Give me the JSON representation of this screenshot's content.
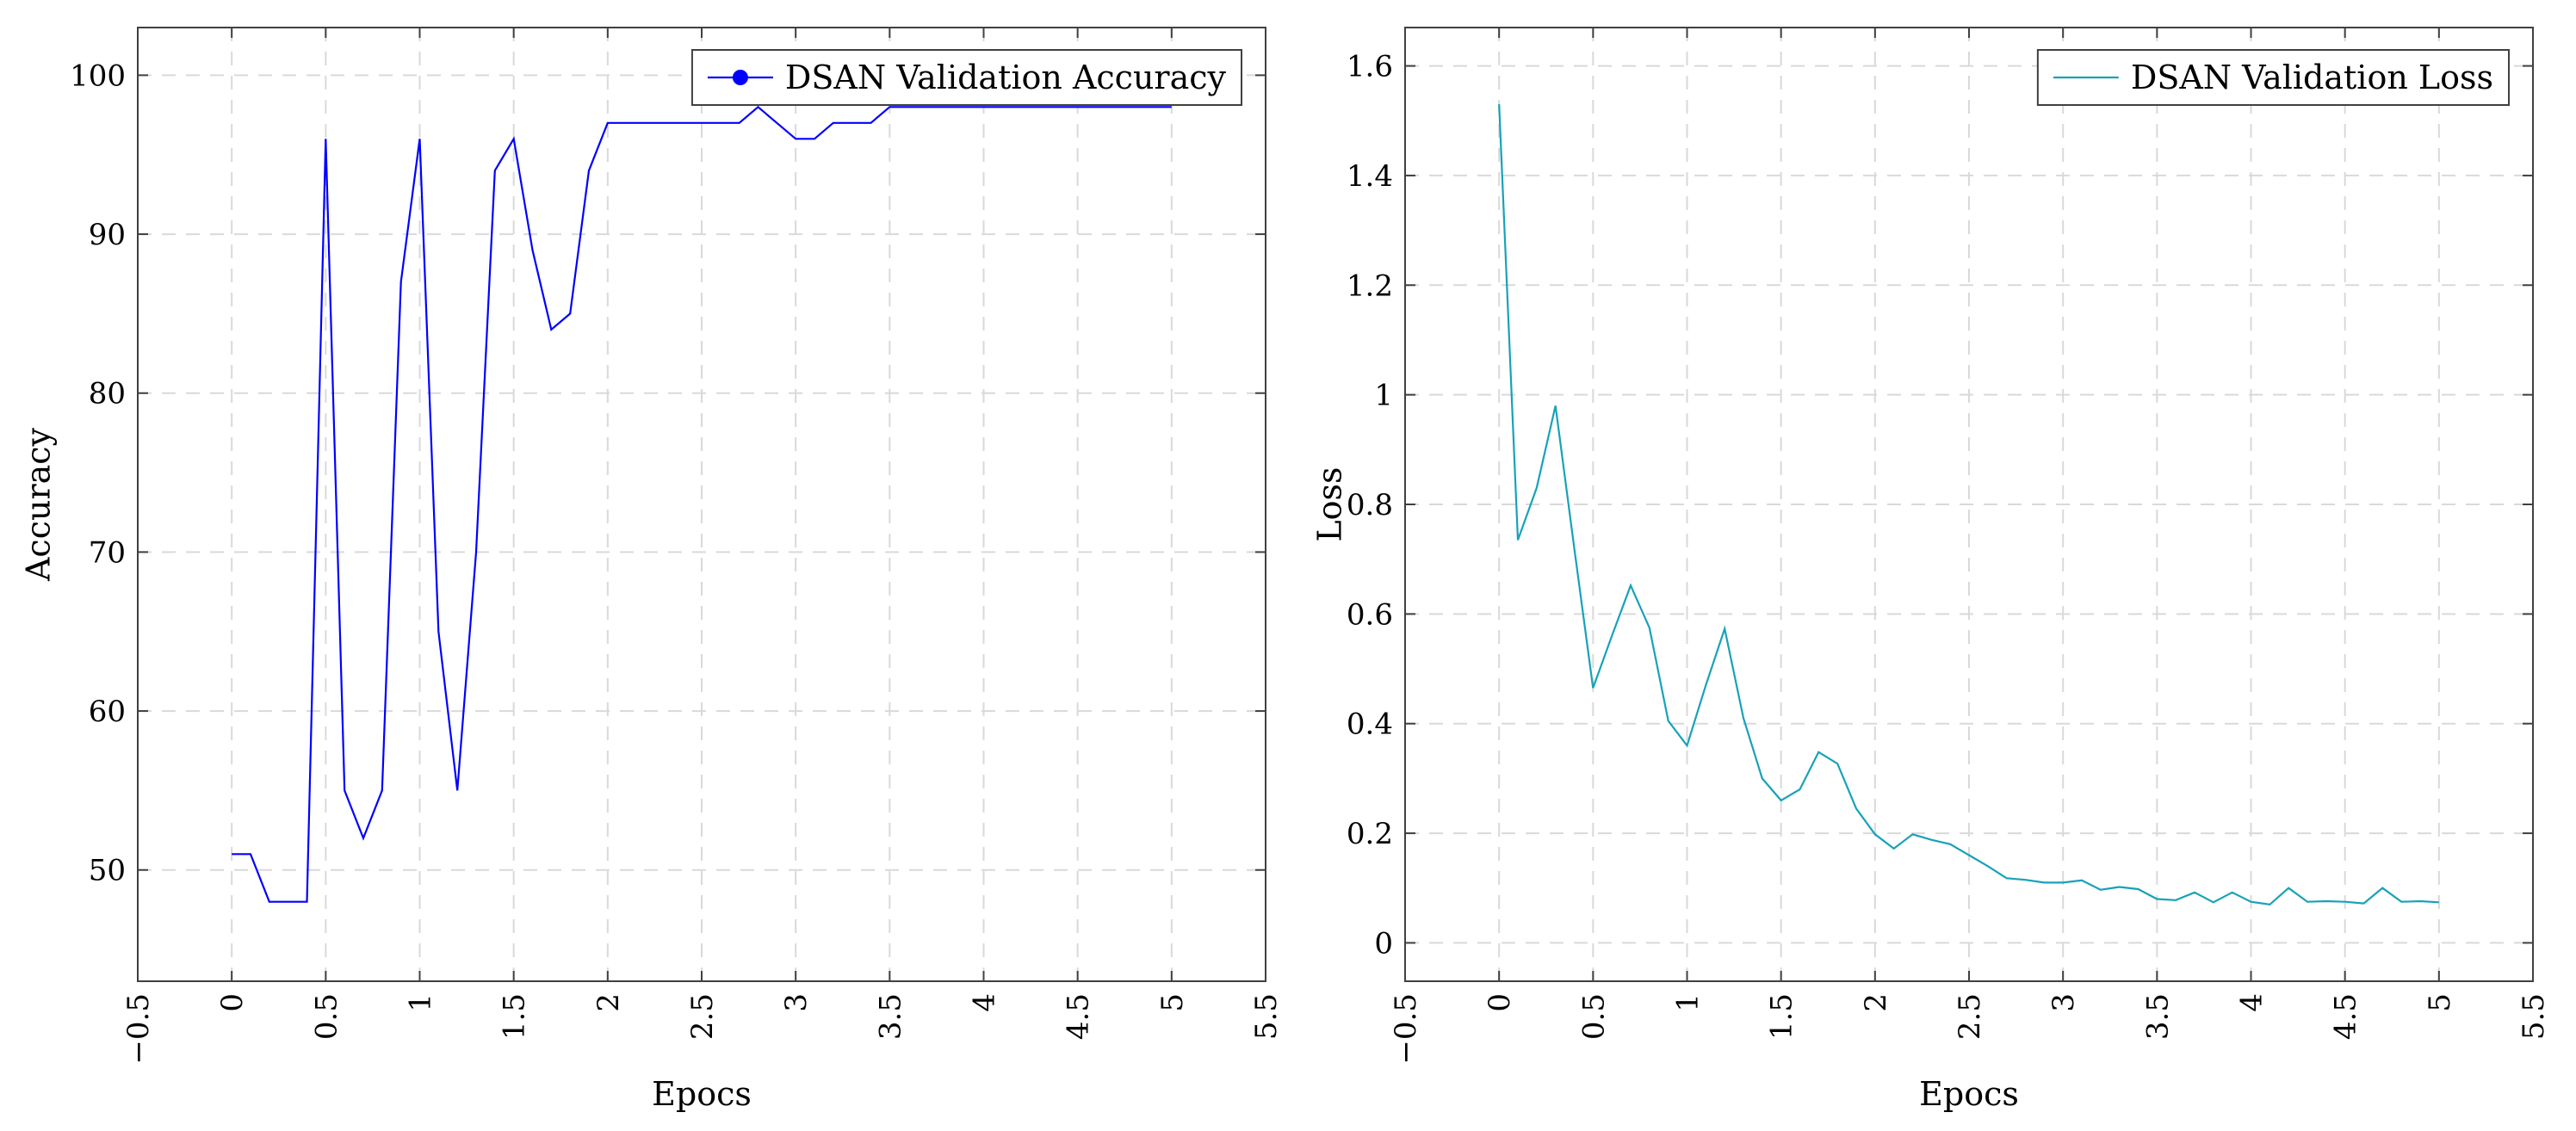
{
  "chart_data": [
    {
      "type": "line",
      "title": "",
      "xlabel": "Epocs",
      "ylabel": "Accuracy",
      "xlim": [
        -0.5,
        5.5
      ],
      "ylim": [
        43,
        103
      ],
      "xticks": [
        "−0.5",
        "0",
        "0.5",
        "1",
        "1.5",
        "2",
        "2.5",
        "3",
        "3.5",
        "4",
        "4.5",
        "5",
        "5.5"
      ],
      "yticks": [
        "50",
        "60",
        "70",
        "80",
        "90",
        "100"
      ],
      "grid": true,
      "legend_position": "top-right",
      "legend_marker": "dot",
      "series": [
        {
          "name": "DSAN Validation Accuracy",
          "color": "#0000ff",
          "x": [
            0,
            0.1,
            0.2,
            0.3,
            0.4,
            0.5,
            0.6,
            0.7,
            0.8,
            0.9,
            1.0,
            1.1,
            1.2,
            1.3,
            1.4,
            1.5,
            1.6,
            1.7,
            1.8,
            1.9,
            2.0,
            2.1,
            2.2,
            2.3,
            2.4,
            2.5,
            2.6,
            2.7,
            2.8,
            2.9,
            3.0,
            3.1,
            3.2,
            3.3,
            3.4,
            3.5,
            3.6,
            3.7,
            3.8,
            3.9,
            4.0,
            4.1,
            4.2,
            4.3,
            4.4,
            4.5,
            4.6,
            4.7,
            4.8,
            4.9,
            5.0
          ],
          "y": [
            51,
            51,
            48,
            48,
            48,
            96,
            55,
            52,
            55,
            87,
            96,
            65,
            55,
            70,
            94,
            96,
            89,
            84,
            85,
            94,
            97,
            97,
            97,
            97,
            97,
            97,
            97,
            97,
            98,
            97,
            96,
            96,
            97,
            97,
            97,
            98,
            98,
            98,
            98,
            98,
            98,
            98,
            98,
            98,
            98,
            98,
            98,
            98,
            98,
            98,
            98
          ]
        }
      ]
    },
    {
      "type": "line",
      "title": "",
      "xlabel": "Epocs",
      "ylabel": "Loss",
      "xlim": [
        -0.5,
        5.5
      ],
      "ylim": [
        -0.07,
        1.67
      ],
      "xticks": [
        "−0.5",
        "0",
        "0.5",
        "1",
        "1.5",
        "2",
        "2.5",
        "3",
        "3.5",
        "4",
        "4.5",
        "5",
        "5.5"
      ],
      "yticks": [
        "0",
        "0.2",
        "0.4",
        "0.6",
        "0.8",
        "1",
        "1.2",
        "1.4",
        "1.6"
      ],
      "grid": true,
      "legend_position": "top-right",
      "legend_marker": "line",
      "series": [
        {
          "name": "DSAN Validation Loss",
          "color": "#17a2b8",
          "x": [
            0,
            0.1,
            0.2,
            0.3,
            0.4,
            0.5,
            0.6,
            0.7,
            0.8,
            0.9,
            1.0,
            1.1,
            1.2,
            1.3,
            1.4,
            1.5,
            1.6,
            1.7,
            1.8,
            1.9,
            2.0,
            2.1,
            2.2,
            2.3,
            2.4,
            2.5,
            2.6,
            2.7,
            2.8,
            2.9,
            3.0,
            3.1,
            3.2,
            3.3,
            3.4,
            3.5,
            3.6,
            3.7,
            3.8,
            3.9,
            4.0,
            4.1,
            4.2,
            4.3,
            4.4,
            4.5,
            4.6,
            4.7,
            4.8,
            4.9,
            5.0
          ],
          "y": [
            1.53,
            0.735,
            0.83,
            0.98,
            0.72,
            0.465,
            0.56,
            0.652,
            0.575,
            0.405,
            0.36,
            0.47,
            0.573,
            0.41,
            0.3,
            0.26,
            0.28,
            0.348,
            0.327,
            0.245,
            0.198,
            0.172,
            0.198,
            0.188,
            0.18,
            0.16,
            0.14,
            0.118,
            0.115,
            0.11,
            0.11,
            0.114,
            0.097,
            0.102,
            0.098,
            0.08,
            0.078,
            0.092,
            0.074,
            0.092,
            0.075,
            0.07,
            0.1,
            0.075,
            0.076,
            0.075,
            0.072,
            0.1,
            0.075,
            0.076,
            0.074
          ]
        }
      ]
    }
  ]
}
